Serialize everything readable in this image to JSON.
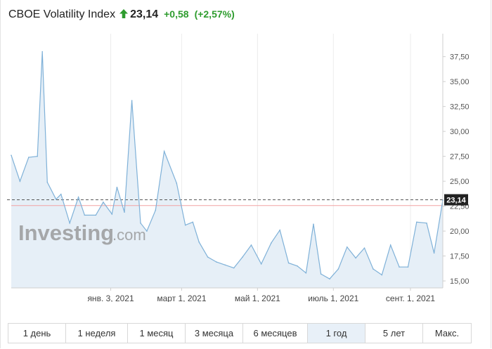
{
  "header": {
    "title": "CBOE Volatility Index",
    "price": "23,14",
    "change": "+0,58",
    "change_pct": "(+2,57%)",
    "colors": {
      "up": "#2e9c2e",
      "line": "#7fb1d8",
      "fill": "#e6eff7",
      "ref_line": "#f2a3a3",
      "badge": "#222222"
    }
  },
  "watermark": {
    "brand": "Investing",
    "suffix": ".com"
  },
  "ranges": {
    "items": [
      "1 день",
      "1 неделя",
      "1 месяц",
      "3 месяца",
      "6 месяцев",
      "1 год",
      "5 лет",
      "Макс."
    ],
    "active_index": 5
  },
  "chart_data": {
    "type": "area",
    "title": "",
    "xlabel": "",
    "ylabel": "",
    "x_tick_labels": [
      "янв. 3, 2021",
      "март 1, 2021",
      "май 1, 2021",
      "июль 1, 2021",
      "сент. 1, 2021"
    ],
    "x_tick_dates": [
      "2021-01-03",
      "2021-03-01",
      "2021-05-01",
      "2021-07-01",
      "2021-09-01"
    ],
    "y_tick_labels": [
      "15,00",
      "17,50",
      "20,00",
      "22,50",
      "25,00",
      "27,50",
      "30,00",
      "32,50",
      "35,00",
      "37,50"
    ],
    "y_ticks": [
      15,
      17.5,
      20,
      22.5,
      25,
      27.5,
      30,
      32.5,
      35,
      37.5
    ],
    "ylim": [
      14.3,
      39.8
    ],
    "grid": "vertical",
    "last_value": 23.14,
    "last_value_label": "23,14",
    "reference_line": 22.56,
    "series": [
      {
        "dates": [
          "2020-10-15",
          "2020-10-22",
          "2020-10-29",
          "2020-11-05",
          "2020-11-09",
          "2020-11-13",
          "2020-11-20",
          "2020-11-24",
          "2020-12-01",
          "2020-12-08",
          "2020-12-13",
          "2020-12-22",
          "2020-12-28",
          "2021-01-04",
          "2021-01-08",
          "2021-01-14",
          "2021-01-20",
          "2021-01-27",
          "2021-02-01",
          "2021-02-08",
          "2021-02-15",
          "2021-02-25",
          "2021-03-04",
          "2021-03-10",
          "2021-03-15",
          "2021-03-22",
          "2021-03-29",
          "2021-04-05",
          "2021-04-12",
          "2021-04-19",
          "2021-04-26",
          "2021-05-04",
          "2021-05-12",
          "2021-05-19",
          "2021-05-26",
          "2021-06-02",
          "2021-06-09",
          "2021-06-15",
          "2021-06-21",
          "2021-06-28",
          "2021-07-05",
          "2021-07-12",
          "2021-07-19",
          "2021-07-26",
          "2021-08-02",
          "2021-08-09",
          "2021-08-16",
          "2021-08-23",
          "2021-08-30",
          "2021-09-06",
          "2021-09-14",
          "2021-09-20",
          "2021-09-27"
        ],
        "values": [
          27.6,
          25.0,
          27.4,
          27.5,
          38.0,
          24.9,
          23.2,
          23.7,
          20.8,
          23.4,
          21.6,
          21.6,
          22.9,
          21.7,
          24.4,
          21.9,
          33.1,
          20.8,
          20.0,
          22.1,
          28.0,
          24.8,
          20.6,
          20.9,
          18.9,
          17.4,
          16.9,
          16.6,
          16.3,
          17.4,
          18.6,
          16.7,
          18.8,
          20.1,
          16.8,
          16.5,
          15.8,
          20.7,
          15.7,
          15.2,
          16.2,
          18.4,
          17.3,
          18.3,
          16.2,
          15.6,
          18.6,
          16.4,
          16.4,
          20.9,
          20.8,
          17.8,
          23.1
        ]
      }
    ]
  }
}
